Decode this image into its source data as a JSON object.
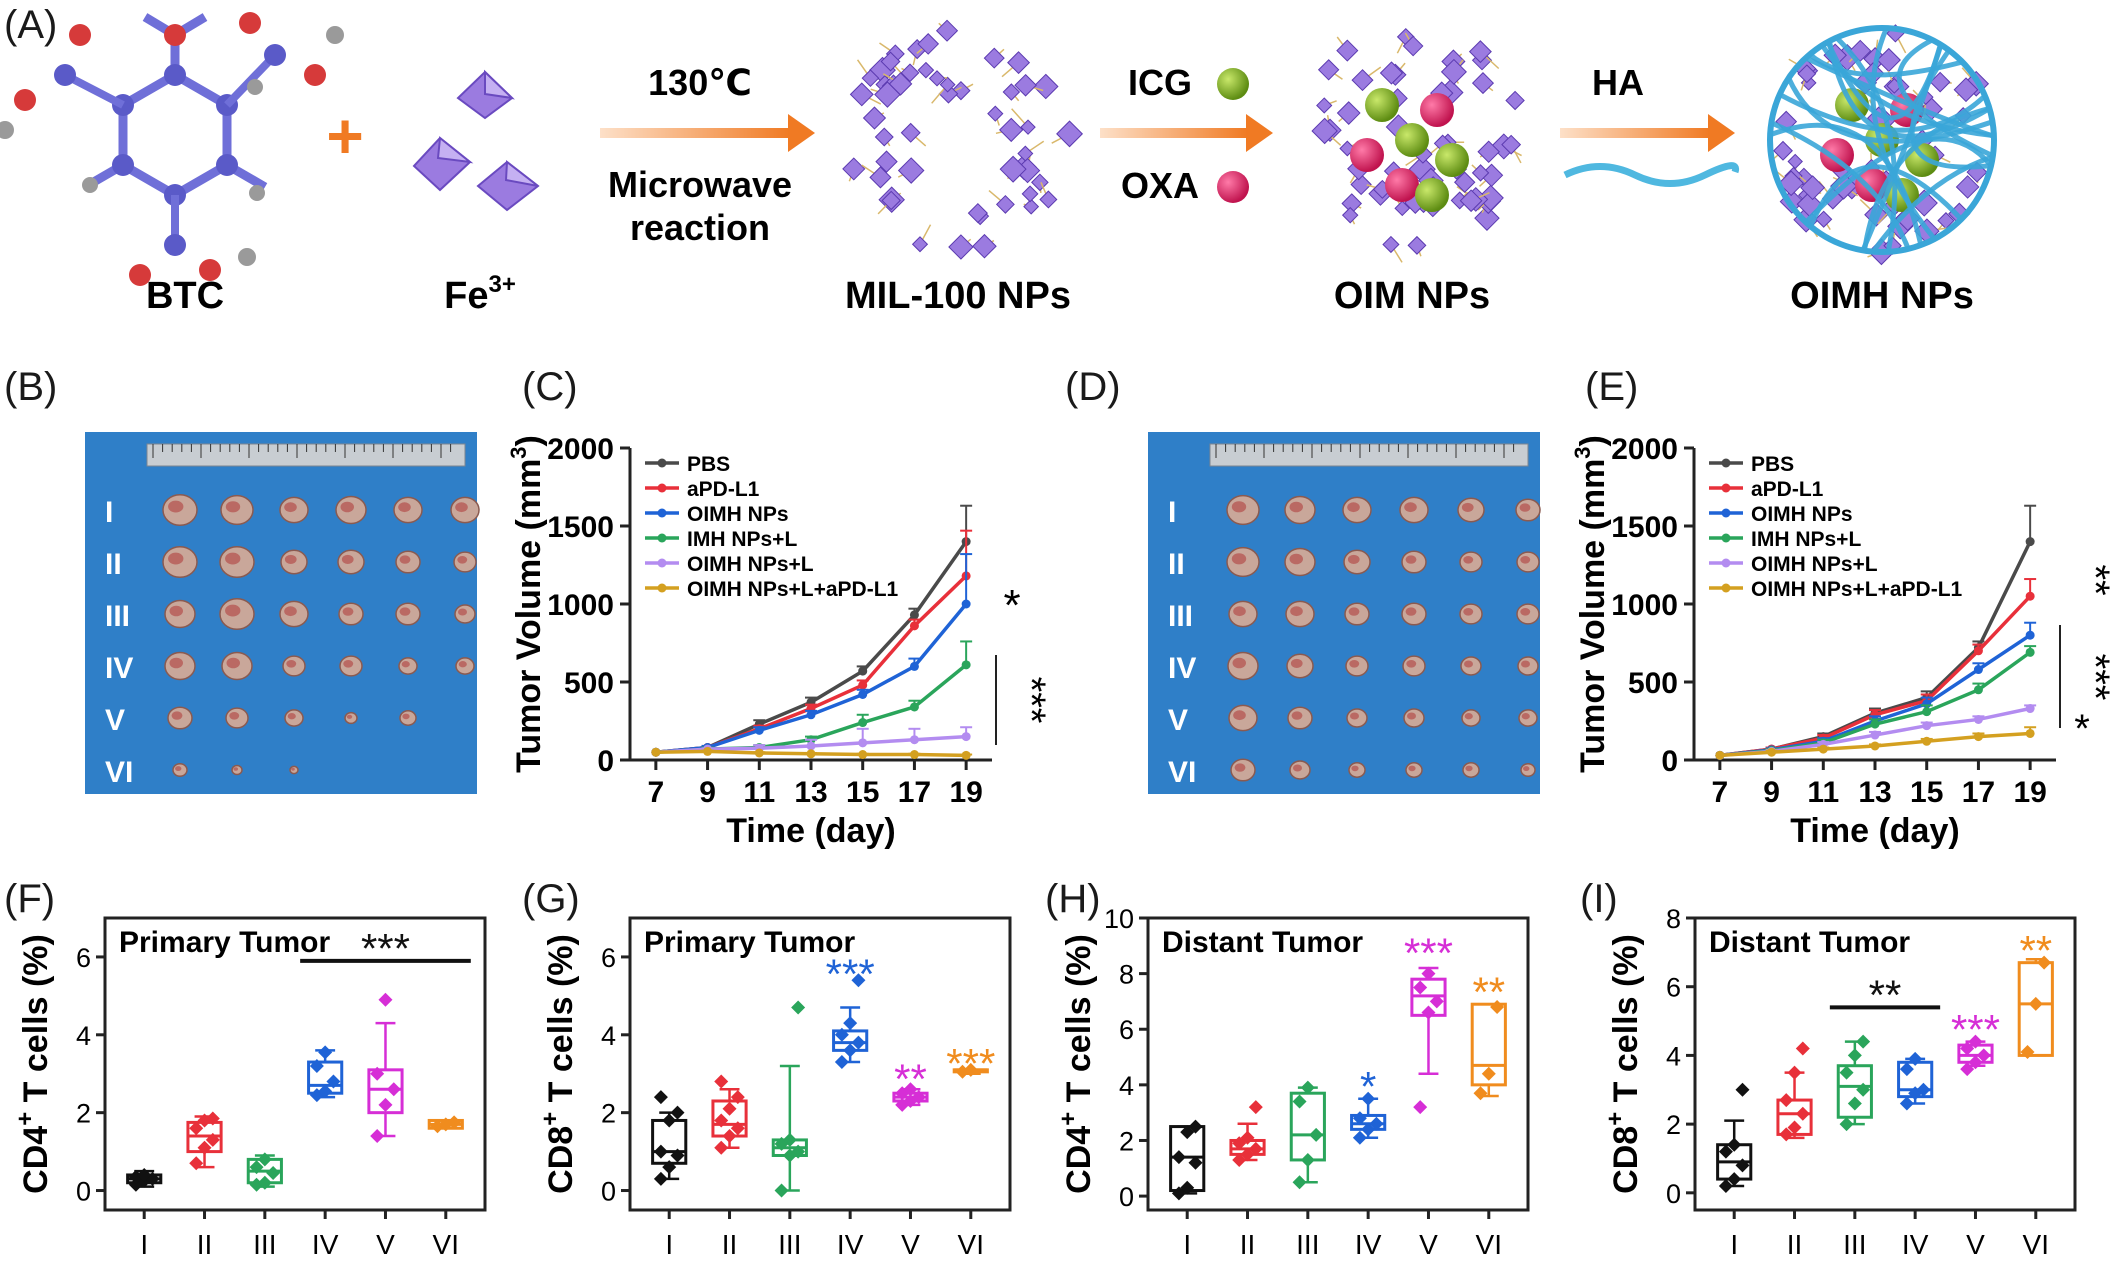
{
  "panels": {
    "A": {
      "label": "(A)",
      "reactants": [
        "BTC",
        "Fe3+"
      ],
      "fe_base": "Fe",
      "fe_sup": "3+",
      "steps": [
        {
          "top": "130℃",
          "bottom1": "Microwave",
          "bottom2": "reaction"
        },
        {
          "top": "ICG",
          "bottom1": "OXA"
        },
        {
          "top": "HA"
        }
      ],
      "products": [
        "MIL-100 NPs",
        "OIM NPs",
        "OIMH NPs"
      ],
      "plus": "+"
    },
    "B": {
      "label": "(B)",
      "rows": [
        "I",
        "II",
        "III",
        "IV",
        "V",
        "VI"
      ]
    },
    "D": {
      "label": "(D)",
      "rows": [
        "I",
        "II",
        "III",
        "IV",
        "V",
        "VI"
      ]
    }
  },
  "colors": {
    "PBS": "#4a4a4a",
    "aPD-L1": "#e8303a",
    "OIMH NPs": "#1f63d6",
    "IMH NPs+L": "#2aa55b",
    "OIMH NPs+L": "#b38cf0",
    "OIMH NPs+L+aPD-L1": "#d4a020",
    "box": [
      "#111111",
      "#e8303a",
      "#2aa55b",
      "#1f63d6",
      "#d62ed6",
      "#f08c1e"
    ],
    "arrow": "#f07a23",
    "tumor_bg": "#2f7fc8"
  },
  "chart_data": [
    {
      "id": "C",
      "label": "(C)",
      "type": "line",
      "xlabel": "Time (day)",
      "ylabel": "Tumor Volume (mm3)",
      "ylabel_base": "Tumor Volume (mm",
      "ylabel_sup": "3",
      "ylabel_end": ")",
      "x": [
        7,
        9,
        11,
        13,
        15,
        17,
        19
      ],
      "xlim": [
        6,
        20
      ],
      "ylim": [
        0,
        2000
      ],
      "xticks": [
        7,
        9,
        11,
        13,
        15,
        17,
        19
      ],
      "yticks": [
        0,
        500,
        1000,
        1500,
        2000
      ],
      "legend": "top-left",
      "series": [
        {
          "name": "PBS",
          "values": [
            50,
            80,
            230,
            370,
            570,
            930,
            1400
          ],
          "err": [
            0,
            10,
            25,
            30,
            30,
            40,
            230
          ]
        },
        {
          "name": "aPD-L1",
          "values": [
            50,
            80,
            200,
            330,
            480,
            860,
            1180
          ],
          "err": [
            0,
            10,
            20,
            25,
            30,
            40,
            290
          ]
        },
        {
          "name": "OIMH NPs",
          "values": [
            50,
            80,
            190,
            290,
            420,
            600,
            1000
          ],
          "err": [
            0,
            10,
            20,
            25,
            30,
            50,
            320
          ]
        },
        {
          "name": "IMH NPs+L",
          "values": [
            50,
            70,
            80,
            130,
            240,
            340,
            610
          ],
          "err": [
            0,
            10,
            15,
            20,
            50,
            40,
            150
          ]
        },
        {
          "name": "OIMH NPs+L",
          "values": [
            50,
            70,
            75,
            90,
            110,
            130,
            150
          ],
          "err": [
            0,
            5,
            20,
            40,
            90,
            70,
            60
          ]
        },
        {
          "name": "OIMH NPs+L+aPD-L1",
          "values": [
            50,
            55,
            45,
            40,
            35,
            35,
            30
          ],
          "err": [
            0,
            5,
            5,
            5,
            5,
            5,
            5
          ]
        }
      ],
      "annotations": [
        "*",
        "***"
      ]
    },
    {
      "id": "E",
      "label": "(E)",
      "type": "line",
      "xlabel": "Time (day)",
      "ylabel": "Tumor Volume (mm3)",
      "ylabel_base": "Tumor Volume (mm",
      "ylabel_sup": "3",
      "ylabel_end": ")",
      "x": [
        7,
        9,
        11,
        13,
        15,
        17,
        19
      ],
      "xlim": [
        6,
        20
      ],
      "ylim": [
        0,
        2000
      ],
      "xticks": [
        7,
        9,
        11,
        13,
        15,
        17,
        19
      ],
      "yticks": [
        0,
        500,
        1000,
        1500,
        2000
      ],
      "legend": "top-left",
      "series": [
        {
          "name": "PBS",
          "values": [
            30,
            70,
            150,
            300,
            400,
            720,
            1400
          ],
          "err": [
            0,
            10,
            20,
            30,
            40,
            40,
            230
          ]
        },
        {
          "name": "aPD-L1",
          "values": [
            30,
            70,
            140,
            290,
            380,
            700,
            1050
          ],
          "err": [
            0,
            10,
            20,
            30,
            40,
            40,
            110
          ]
        },
        {
          "name": "OIMH NPs",
          "values": [
            30,
            65,
            120,
            250,
            360,
            580,
            800
          ],
          "err": [
            0,
            10,
            20,
            30,
            40,
            40,
            80
          ]
        },
        {
          "name": "IMH NPs+L",
          "values": [
            30,
            60,
            110,
            230,
            310,
            450,
            690
          ],
          "err": [
            0,
            10,
            20,
            30,
            40,
            40,
            40
          ]
        },
        {
          "name": "OIMH NPs+L",
          "values": [
            30,
            55,
            100,
            160,
            220,
            260,
            330
          ],
          "err": [
            0,
            10,
            15,
            20,
            20,
            20,
            20
          ]
        },
        {
          "name": "OIMH NPs+L+aPD-L1",
          "values": [
            30,
            50,
            70,
            90,
            120,
            150,
            170
          ],
          "err": [
            0,
            10,
            10,
            10,
            15,
            20,
            40
          ]
        }
      ],
      "annotations": [
        "**",
        "***",
        "*"
      ]
    },
    {
      "id": "F",
      "label": "(F)",
      "type": "box",
      "ylabel": "CD4+ T cells (%)",
      "ylabel_base": "CD4",
      "ylabel_sup": "+",
      "ylabel_end": " T cells (%)",
      "title": "Primary Tumor",
      "categories": [
        "I",
        "II",
        "III",
        "IV",
        "V",
        "VI"
      ],
      "ylim": [
        -0.5,
        7
      ],
      "yticks": [
        0,
        2,
        4,
        6
      ],
      "boxes": [
        {
          "min": 0.1,
          "q1": 0.2,
          "median": 0.3,
          "q3": 0.4,
          "max": 0.5,
          "points": [
            0.15,
            0.25,
            0.3,
            0.35,
            0.4
          ]
        },
        {
          "min": 0.6,
          "q1": 1.0,
          "median": 1.4,
          "q3": 1.75,
          "max": 1.9,
          "points": [
            0.7,
            1.1,
            1.3,
            1.6,
            1.8,
            1.85
          ]
        },
        {
          "min": 0.1,
          "q1": 0.2,
          "median": 0.5,
          "q3": 0.8,
          "max": 0.9,
          "points": [
            0.15,
            0.2,
            0.45,
            0.6,
            0.8
          ]
        },
        {
          "min": 2.4,
          "q1": 2.5,
          "median": 2.7,
          "q3": 3.3,
          "max": 3.6,
          "points": [
            2.45,
            2.55,
            2.8,
            3.2,
            3.55
          ]
        },
        {
          "min": 1.4,
          "q1": 2.0,
          "median": 2.6,
          "q3": 3.1,
          "max": 4.3,
          "points": [
            1.4,
            2.2,
            2.6,
            3.0,
            4.9
          ]
        },
        {
          "min": 1.6,
          "q1": 1.6,
          "median": 1.7,
          "q3": 1.8,
          "max": 1.8,
          "points": [
            1.65,
            1.7,
            1.75
          ]
        }
      ],
      "significance": [
        {
          "from": 3,
          "to": 5,
          "text": "***",
          "y": 5.9,
          "color": "#111111"
        }
      ]
    },
    {
      "id": "G",
      "label": "(G)",
      "type": "box",
      "ylabel": "CD8+ T cells (%)",
      "ylabel_base": "CD8",
      "ylabel_sup": "+",
      "ylabel_end": " T cells (%)",
      "title": "Primary Tumor",
      "categories": [
        "I",
        "II",
        "III",
        "IV",
        "V",
        "VI"
      ],
      "ylim": [
        -0.5,
        7
      ],
      "yticks": [
        0,
        2,
        4,
        6
      ],
      "boxes": [
        {
          "min": 0.3,
          "q1": 0.7,
          "median": 1.0,
          "q3": 1.8,
          "max": 2.0,
          "points": [
            0.3,
            0.6,
            0.9,
            1.0,
            1.8,
            2.0,
            2.4
          ]
        },
        {
          "min": 1.1,
          "q1": 1.4,
          "median": 1.7,
          "q3": 2.3,
          "max": 2.6,
          "points": [
            1.1,
            1.4,
            1.6,
            1.8,
            2.1,
            2.4,
            2.8
          ]
        },
        {
          "min": 0.0,
          "q1": 0.9,
          "median": 1.1,
          "q3": 1.3,
          "max": 3.2,
          "points": [
            0.0,
            0.9,
            1.0,
            1.2,
            1.3,
            4.7
          ]
        },
        {
          "min": 3.3,
          "q1": 3.6,
          "median": 3.8,
          "q3": 4.1,
          "max": 4.7,
          "points": [
            3.3,
            3.6,
            3.8,
            4.0,
            4.3,
            5.4
          ]
        },
        {
          "min": 2.2,
          "q1": 2.3,
          "median": 2.4,
          "q3": 2.5,
          "max": 2.6,
          "points": [
            2.2,
            2.3,
            2.4,
            2.5,
            2.6
          ]
        },
        {
          "min": 3.0,
          "q1": 3.05,
          "median": 3.1,
          "q3": 3.1,
          "max": 3.1,
          "points": [
            3.05,
            3.1
          ]
        }
      ],
      "stars": [
        {
          "cat": 3,
          "text": "***",
          "y": 5.6
        },
        {
          "cat": 4,
          "text": "**",
          "y": 2.9
        },
        {
          "cat": 5,
          "text": "***",
          "y": 3.3
        }
      ]
    },
    {
      "id": "H",
      "label": "(H)",
      "type": "box",
      "ylabel": "CD4+ T cells (%)",
      "ylabel_base": "CD4",
      "ylabel_sup": "+",
      "ylabel_end": " T cells (%)",
      "title": "Distant Tumor",
      "categories": [
        "I",
        "II",
        "III",
        "IV",
        "V",
        "VI"
      ],
      "ylim": [
        -0.5,
        10
      ],
      "yticks": [
        0,
        2,
        4,
        6,
        8,
        10
      ],
      "boxes": [
        {
          "min": 0.1,
          "q1": 0.2,
          "median": 1.4,
          "q3": 2.5,
          "max": 2.5,
          "points": [
            0.1,
            0.3,
            1.2,
            1.4,
            2.3,
            2.5
          ]
        },
        {
          "min": 1.3,
          "q1": 1.5,
          "median": 1.7,
          "q3": 2.0,
          "max": 2.6,
          "points": [
            1.3,
            1.5,
            1.7,
            1.9,
            2.1,
            3.2
          ]
        },
        {
          "min": 0.5,
          "q1": 1.3,
          "median": 2.2,
          "q3": 3.7,
          "max": 3.9,
          "points": [
            0.5,
            1.3,
            2.2,
            3.4,
            3.9
          ]
        },
        {
          "min": 2.1,
          "q1": 2.4,
          "median": 2.6,
          "q3": 2.9,
          "max": 3.5,
          "points": [
            2.1,
            2.4,
            2.6,
            2.8,
            3.5
          ]
        },
        {
          "min": 4.4,
          "q1": 6.5,
          "median": 7.2,
          "q3": 7.8,
          "max": 8.2,
          "points": [
            3.2,
            6.6,
            7.0,
            7.5,
            8.0
          ]
        },
        {
          "min": 3.6,
          "q1": 4.0,
          "median": 4.7,
          "q3": 6.9,
          "max": 6.9,
          "points": [
            3.7,
            4.4,
            6.8
          ]
        }
      ],
      "stars": [
        {
          "cat": 3,
          "text": "*",
          "y": 4.0
        },
        {
          "cat": 4,
          "text": "***",
          "y": 8.8
        },
        {
          "cat": 5,
          "text": "**",
          "y": 7.4
        }
      ]
    },
    {
      "id": "I",
      "label": "(I)",
      "type": "box",
      "ylabel": "CD8+ T cells (%)",
      "ylabel_base": "CD8",
      "ylabel_sup": "+",
      "ylabel_end": " T cells (%)",
      "title": "Distant Tumor",
      "categories": [
        "I",
        "II",
        "III",
        "IV",
        "V",
        "VI"
      ],
      "ylim": [
        -0.5,
        8
      ],
      "yticks": [
        0,
        2,
        4,
        6,
        8
      ],
      "boxes": [
        {
          "min": 0.2,
          "q1": 0.4,
          "median": 0.9,
          "q3": 1.4,
          "max": 2.1,
          "points": [
            0.2,
            0.4,
            0.8,
            1.2,
            1.4,
            3.0
          ]
        },
        {
          "min": 1.6,
          "q1": 1.7,
          "median": 2.3,
          "q3": 2.7,
          "max": 3.5,
          "points": [
            1.7,
            1.9,
            2.3,
            2.7,
            3.5,
            4.2
          ]
        },
        {
          "min": 2.0,
          "q1": 2.2,
          "median": 3.1,
          "q3": 3.7,
          "max": 4.4,
          "points": [
            2.0,
            2.6,
            3.0,
            3.5,
            4.0,
            4.4
          ]
        },
        {
          "min": 2.6,
          "q1": 2.8,
          "median": 3.0,
          "q3": 3.8,
          "max": 3.9,
          "points": [
            2.6,
            2.9,
            3.0,
            3.6,
            3.9
          ]
        },
        {
          "min": 3.7,
          "q1": 3.8,
          "median": 4.0,
          "q3": 4.3,
          "max": 4.4,
          "points": [
            3.6,
            3.8,
            4.0,
            4.2,
            4.4
          ]
        },
        {
          "min": 4.0,
          "q1": 4.0,
          "median": 5.5,
          "q3": 6.7,
          "max": 6.8,
          "points": [
            4.1,
            5.5,
            6.7
          ]
        }
      ],
      "significance": [
        {
          "from": 2,
          "to": 3,
          "text": "**",
          "y": 5.4,
          "color": "#111111"
        }
      ],
      "stars": [
        {
          "cat": 4,
          "text": "***",
          "y": 4.8
        },
        {
          "cat": 5,
          "text": "**",
          "y": 7.1
        }
      ]
    }
  ]
}
